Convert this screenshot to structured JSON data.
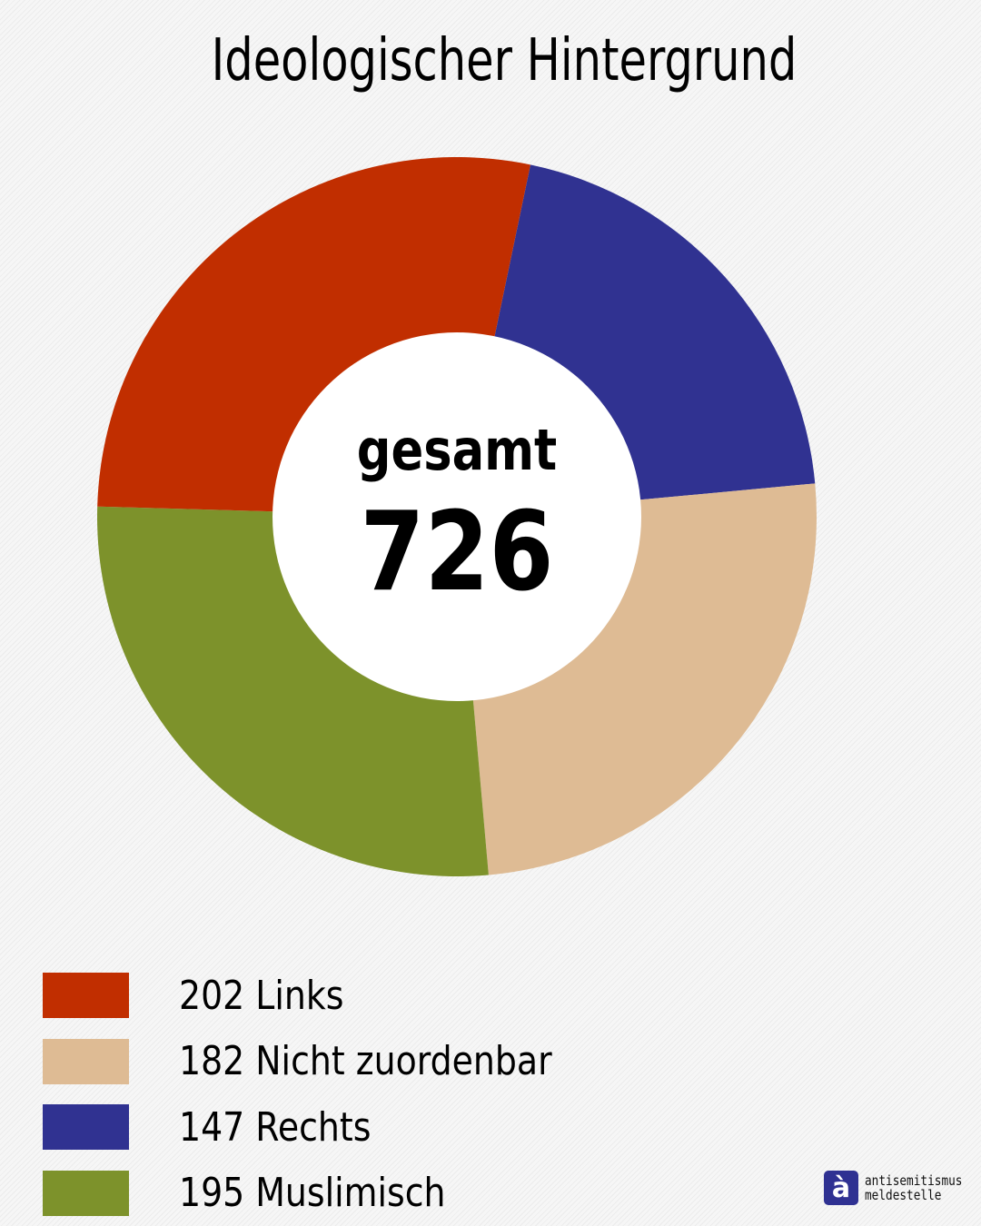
{
  "title": "Ideologischer Hintergrund",
  "center": {
    "label": "gesamt",
    "value": "726"
  },
  "legend": [
    {
      "label": "202 Links",
      "color": "#c12e00"
    },
    {
      "label": "182 Nicht zuordenbar",
      "color": "#debb94"
    },
    {
      "label": "147 Rechts",
      "color": "#303291"
    },
    {
      "label": "195 Muslimisch",
      "color": "#7d922b"
    }
  ],
  "logo": {
    "line1": "antisemitismus",
    "line2": "meldestelle",
    "glyph": "à",
    "color": "#2f3192"
  },
  "chart_data": {
    "type": "pie",
    "subtype": "donut",
    "title": "Ideologischer Hintergrund",
    "center_label": "gesamt",
    "total": 726,
    "categories": [
      "Links",
      "Nicht zuordenbar",
      "Rechts",
      "Muslimisch"
    ],
    "values": [
      202,
      182,
      147,
      195
    ],
    "colors": [
      "#c12e00",
      "#debb94",
      "#303291",
      "#7d922b"
    ],
    "slice_order_clockwise_from_top": [
      "Rechts",
      "Nicht zuordenbar",
      "Muslimisch",
      "Links"
    ],
    "legend_position": "bottom-left"
  }
}
